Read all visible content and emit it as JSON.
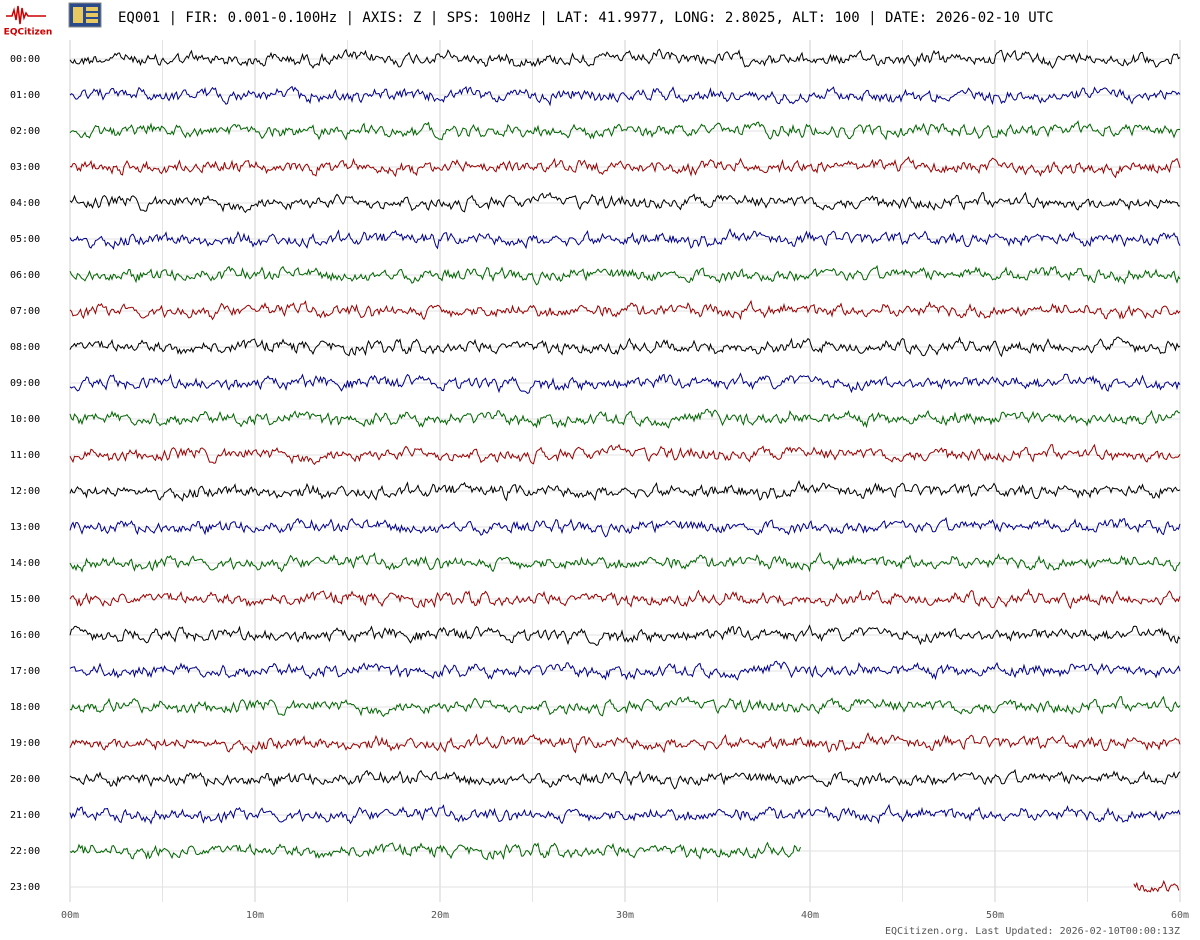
{
  "chart_data": {
    "type": "helicorder",
    "logo_text": "EQCitizen",
    "title": "EQ001 | FIR: 0.001-0.100Hz | AXIS: Z | SPS: 100Hz | LAT: 41.9977, LONG: 2.8025, ALT: 100 | DATE: 2026-02-10 UTC",
    "footer": "EQCitizen.org. Last Updated: 2026-02-10T00:00:13Z",
    "xlim": [
      0,
      60
    ],
    "xticks": [
      {
        "value": 0,
        "label": "00m"
      },
      {
        "value": 10,
        "label": "10m"
      },
      {
        "value": 20,
        "label": "20m"
      },
      {
        "value": 30,
        "label": "30m"
      },
      {
        "value": 40,
        "label": "40m"
      },
      {
        "value": 50,
        "label": "50m"
      },
      {
        "value": 60,
        "label": "60m"
      }
    ],
    "minor_xticks": [
      5,
      15,
      25,
      35,
      45,
      55
    ],
    "grid": true,
    "series": [
      {
        "name": "00:00",
        "color": "#000000",
        "xrange": [
          0,
          60
        ]
      },
      {
        "name": "01:00",
        "color": "#00008b",
        "xrange": [
          0,
          60
        ]
      },
      {
        "name": "02:00",
        "color": "#006400",
        "xrange": [
          0,
          60
        ]
      },
      {
        "name": "03:00",
        "color": "#990000",
        "xrange": [
          0,
          60
        ]
      },
      {
        "name": "04:00",
        "color": "#000000",
        "xrange": [
          0,
          60
        ]
      },
      {
        "name": "05:00",
        "color": "#00008b",
        "xrange": [
          0,
          60
        ]
      },
      {
        "name": "06:00",
        "color": "#006400",
        "xrange": [
          0,
          60
        ]
      },
      {
        "name": "07:00",
        "color": "#990000",
        "xrange": [
          0,
          60
        ]
      },
      {
        "name": "08:00",
        "color": "#000000",
        "xrange": [
          0,
          60
        ]
      },
      {
        "name": "09:00",
        "color": "#00008b",
        "xrange": [
          0,
          60
        ]
      },
      {
        "name": "10:00",
        "color": "#006400",
        "xrange": [
          0,
          60
        ]
      },
      {
        "name": "11:00",
        "color": "#990000",
        "xrange": [
          0,
          60
        ]
      },
      {
        "name": "12:00",
        "color": "#000000",
        "xrange": [
          0,
          60
        ]
      },
      {
        "name": "13:00",
        "color": "#00008b",
        "xrange": [
          0,
          60
        ]
      },
      {
        "name": "14:00",
        "color": "#006400",
        "xrange": [
          0,
          60
        ]
      },
      {
        "name": "15:00",
        "color": "#990000",
        "xrange": [
          0,
          60
        ]
      },
      {
        "name": "16:00",
        "color": "#000000",
        "xrange": [
          0,
          60
        ]
      },
      {
        "name": "17:00",
        "color": "#00008b",
        "xrange": [
          0,
          60
        ]
      },
      {
        "name": "18:00",
        "color": "#006400",
        "xrange": [
          0,
          60
        ]
      },
      {
        "name": "19:00",
        "color": "#990000",
        "xrange": [
          0,
          60
        ]
      },
      {
        "name": "20:00",
        "color": "#000000",
        "xrange": [
          0,
          60
        ]
      },
      {
        "name": "21:00",
        "color": "#00008b",
        "xrange": [
          0,
          60
        ]
      },
      {
        "name": "22:00",
        "color": "#006400",
        "xrange": [
          0,
          39.5
        ]
      },
      {
        "name": "23:00",
        "color": "#990000",
        "xrange": [
          57.5,
          60
        ]
      }
    ]
  }
}
